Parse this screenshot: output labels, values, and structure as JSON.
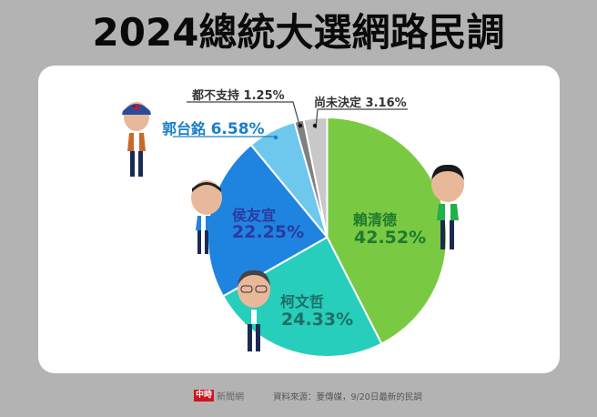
{
  "header": {
    "title": "2024總統大選網路民調"
  },
  "chart_data": {
    "type": "pie",
    "title": "2024總統大選網路民調",
    "start_angle_deg": 0,
    "direction": "clockwise",
    "categories": [
      "賴清德",
      "柯文哲",
      "侯友宜",
      "郭台銘",
      "都不支持",
      "尚未決定"
    ],
    "values": [
      42.52,
      24.33,
      22.25,
      6.58,
      1.25,
      3.16
    ],
    "unit": "%",
    "colors": [
      "#7ac943",
      "#27cebb",
      "#1f84e0",
      "#6ec8ee",
      "#808080",
      "#c8c8c8"
    ],
    "labels": [
      {
        "name": "賴清德",
        "value": "42.52%",
        "color": "#1e7a2e"
      },
      {
        "name": "柯文哲",
        "value": "24.33%",
        "color": "#1f6e66"
      },
      {
        "name": "侯友宜",
        "value": "22.25%",
        "color": "#2b3aa0"
      },
      {
        "name": "郭台銘",
        "value": "6.58%",
        "color": "#1a7ec8"
      },
      {
        "name": "都不支持",
        "value": "1.25%",
        "color": "#333333"
      },
      {
        "name": "尚未決定",
        "value": "3.16%",
        "color": "#333333"
      }
    ]
  },
  "footer": {
    "logo_mark": "中時",
    "logo_text": "新聞網",
    "source": "資料來源：菱傳媒，9/20日最新的民調"
  }
}
